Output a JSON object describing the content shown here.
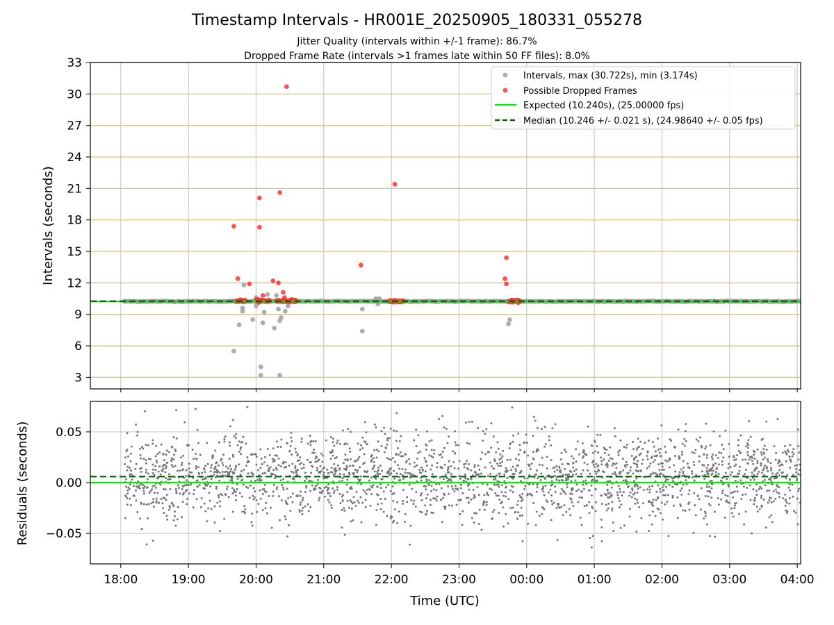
{
  "chart_data": [
    {
      "type": "scatter",
      "title": "Timestamp Intervals - HR001E_20250905_180331_055278",
      "subtitle_lines": [
        "Jitter Quality (intervals within +/-1 frame): 86.7%",
        "Dropped Frame Rate (intervals >1 frames late within 50 FF files): 8.0%"
      ],
      "ylabel": "Intervals (seconds)",
      "ylim": [
        1.9,
        33
      ],
      "yticks": [
        3,
        6,
        9,
        12,
        15,
        18,
        21,
        24,
        27,
        30,
        33
      ],
      "ytick_labels": [
        "3",
        "6",
        "9",
        "12",
        "15",
        "18",
        "21",
        "24",
        "27",
        "30",
        "33"
      ],
      "xlim_hours": [
        17.55,
        28.05
      ],
      "grid": "horizontal gold lines, vertical gray lines",
      "legend_position": "top-right",
      "legend": [
        "Intervals, max (30.722s), min (3.174s)",
        "Possible Dropped Frames",
        "Expected (10.240s), (25.00000 fps)",
        "Median (10.246 +/- 0.021 s), (24.98640 +/- 0.05 fps)"
      ],
      "series": [
        {
          "name": "Intervals, max (30.722s), min (3.174s)",
          "color": "#999999",
          "baseline": 10.24,
          "baseline_x_range": [
            18.05,
            28.05
          ],
          "points": [
            {
              "x": 19.67,
              "y": 5.5
            },
            {
              "x": 19.75,
              "y": 8.0
            },
            {
              "x": 19.8,
              "y": 9.3
            },
            {
              "x": 19.8,
              "y": 9.6
            },
            {
              "x": 19.82,
              "y": 11.8
            },
            {
              "x": 19.95,
              "y": 8.5
            },
            {
              "x": 20.0,
              "y": 9.8
            },
            {
              "x": 20.0,
              "y": 10.6
            },
            {
              "x": 20.07,
              "y": 4.0
            },
            {
              "x": 20.07,
              "y": 3.2
            },
            {
              "x": 20.1,
              "y": 8.2
            },
            {
              "x": 20.12,
              "y": 9.2
            },
            {
              "x": 20.17,
              "y": 10.9
            },
            {
              "x": 20.27,
              "y": 7.7
            },
            {
              "x": 20.3,
              "y": 10.8
            },
            {
              "x": 20.33,
              "y": 9.5
            },
            {
              "x": 20.35,
              "y": 8.4
            },
            {
              "x": 20.37,
              "y": 8.7
            },
            {
              "x": 20.35,
              "y": 3.2
            },
            {
              "x": 20.43,
              "y": 9.3
            },
            {
              "x": 20.47,
              "y": 9.8
            },
            {
              "x": 21.57,
              "y": 7.4
            },
            {
              "x": 21.57,
              "y": 9.5
            },
            {
              "x": 21.77,
              "y": 10.5
            },
            {
              "x": 21.82,
              "y": 10.5
            },
            {
              "x": 21.8,
              "y": 10.0
            },
            {
              "x": 23.73,
              "y": 8.1
            },
            {
              "x": 23.75,
              "y": 8.5
            }
          ]
        },
        {
          "name": "Possible Dropped Frames",
          "color": "#ff3333",
          "clusters": [
            {
              "x_start": 19.7,
              "x_end": 19.85,
              "y": 10.3
            },
            {
              "x_start": 20.0,
              "x_end": 20.2,
              "y": 10.3
            },
            {
              "x_start": 20.3,
              "x_end": 20.6,
              "y": 10.3
            },
            {
              "x_start": 21.97,
              "x_end": 22.18,
              "y": 10.25
            },
            {
              "x_start": 23.73,
              "x_end": 23.9,
              "y": 10.25
            }
          ],
          "points": [
            {
              "x": 19.67,
              "y": 17.4
            },
            {
              "x": 19.73,
              "y": 12.4
            },
            {
              "x": 19.9,
              "y": 11.9
            },
            {
              "x": 20.05,
              "y": 20.1
            },
            {
              "x": 20.05,
              "y": 17.3
            },
            {
              "x": 20.1,
              "y": 10.8
            },
            {
              "x": 20.25,
              "y": 12.2
            },
            {
              "x": 20.33,
              "y": 12.0
            },
            {
              "x": 20.35,
              "y": 20.6
            },
            {
              "x": 20.45,
              "y": 30.7
            },
            {
              "x": 20.4,
              "y": 11.1
            },
            {
              "x": 20.42,
              "y": 10.6
            },
            {
              "x": 21.55,
              "y": 13.7
            },
            {
              "x": 22.05,
              "y": 21.4
            },
            {
              "x": 23.7,
              "y": 14.4
            },
            {
              "x": 23.68,
              "y": 12.4
            },
            {
              "x": 23.7,
              "y": 11.9
            }
          ]
        },
        {
          "name": "Expected (10.240s), (25.00000 fps)",
          "color": "#00ee00",
          "y": 10.24,
          "style": "solid"
        },
        {
          "name": "Median (10.246 +/- 0.021 s), (24.98640 +/- 0.05 fps)",
          "color": "#006600",
          "y": 10.246,
          "style": "dashed"
        }
      ]
    },
    {
      "type": "scatter",
      "ylabel": "Residuals (seconds)",
      "xlabel": "Time (UTC)",
      "ylim": [
        -0.08,
        0.08
      ],
      "yticks": [
        -0.05,
        0.0,
        0.05
      ],
      "ytick_labels": [
        "−0.05",
        "0.00",
        "0.05"
      ],
      "xlim_hours": [
        17.55,
        28.05
      ],
      "xticks_hours": [
        18,
        19,
        20,
        21,
        22,
        23,
        24,
        25,
        26,
        27,
        28
      ],
      "xtick_labels": [
        "18:00",
        "19:00",
        "20:00",
        "21:00",
        "22:00",
        "23:00",
        "00:00",
        "01:00",
        "02:00",
        "03:00",
        "04:00"
      ],
      "grid": true,
      "series": [
        {
          "name": "residuals",
          "color": "#777777",
          "x_range": [
            18.05,
            28.05
          ],
          "y_range": [
            -0.065,
            0.078
          ]
        },
        {
          "name": "expected",
          "color": "#00ee00",
          "y": 0.0,
          "style": "solid"
        },
        {
          "name": "median",
          "color": "#006600",
          "y": 0.006,
          "style": "dashed"
        }
      ]
    }
  ]
}
